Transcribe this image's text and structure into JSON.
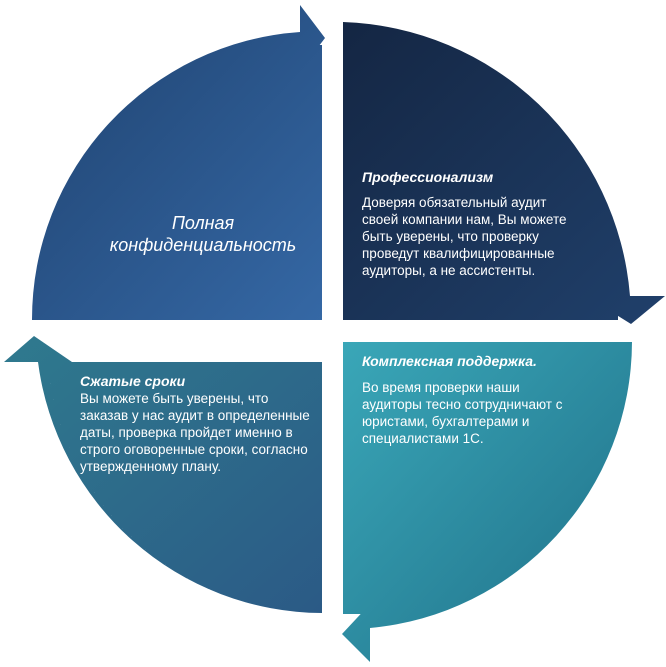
{
  "quadrants": {
    "top_left": {
      "title": "Полная конфиденциальность",
      "color": "#2d5b91"
    },
    "top_right": {
      "title": "Профессионализм",
      "body": "Доверяя обязательный аудит своей компании нам, Вы можете быть уверены, что проверку проведут квалифицированные аудиторы, а не ассистенты.",
      "color": "#1c3358"
    },
    "bottom_right": {
      "title": "Комплексная поддержка.",
      "body": "Во время проверки наши аудиторы тесно сотрудничают с юристами, бухгалтерами и специалистами 1С.",
      "color": "#2b8a9e"
    },
    "bottom_left": {
      "title": "Сжатые сроки",
      "body": "Вы можете быть уверены, что заказав у нас аудит в определенные даты, проверка пройдет именно в строго оговоренные сроки, согласно утвержденному плану.",
      "color": "#2e6a8a"
    }
  }
}
